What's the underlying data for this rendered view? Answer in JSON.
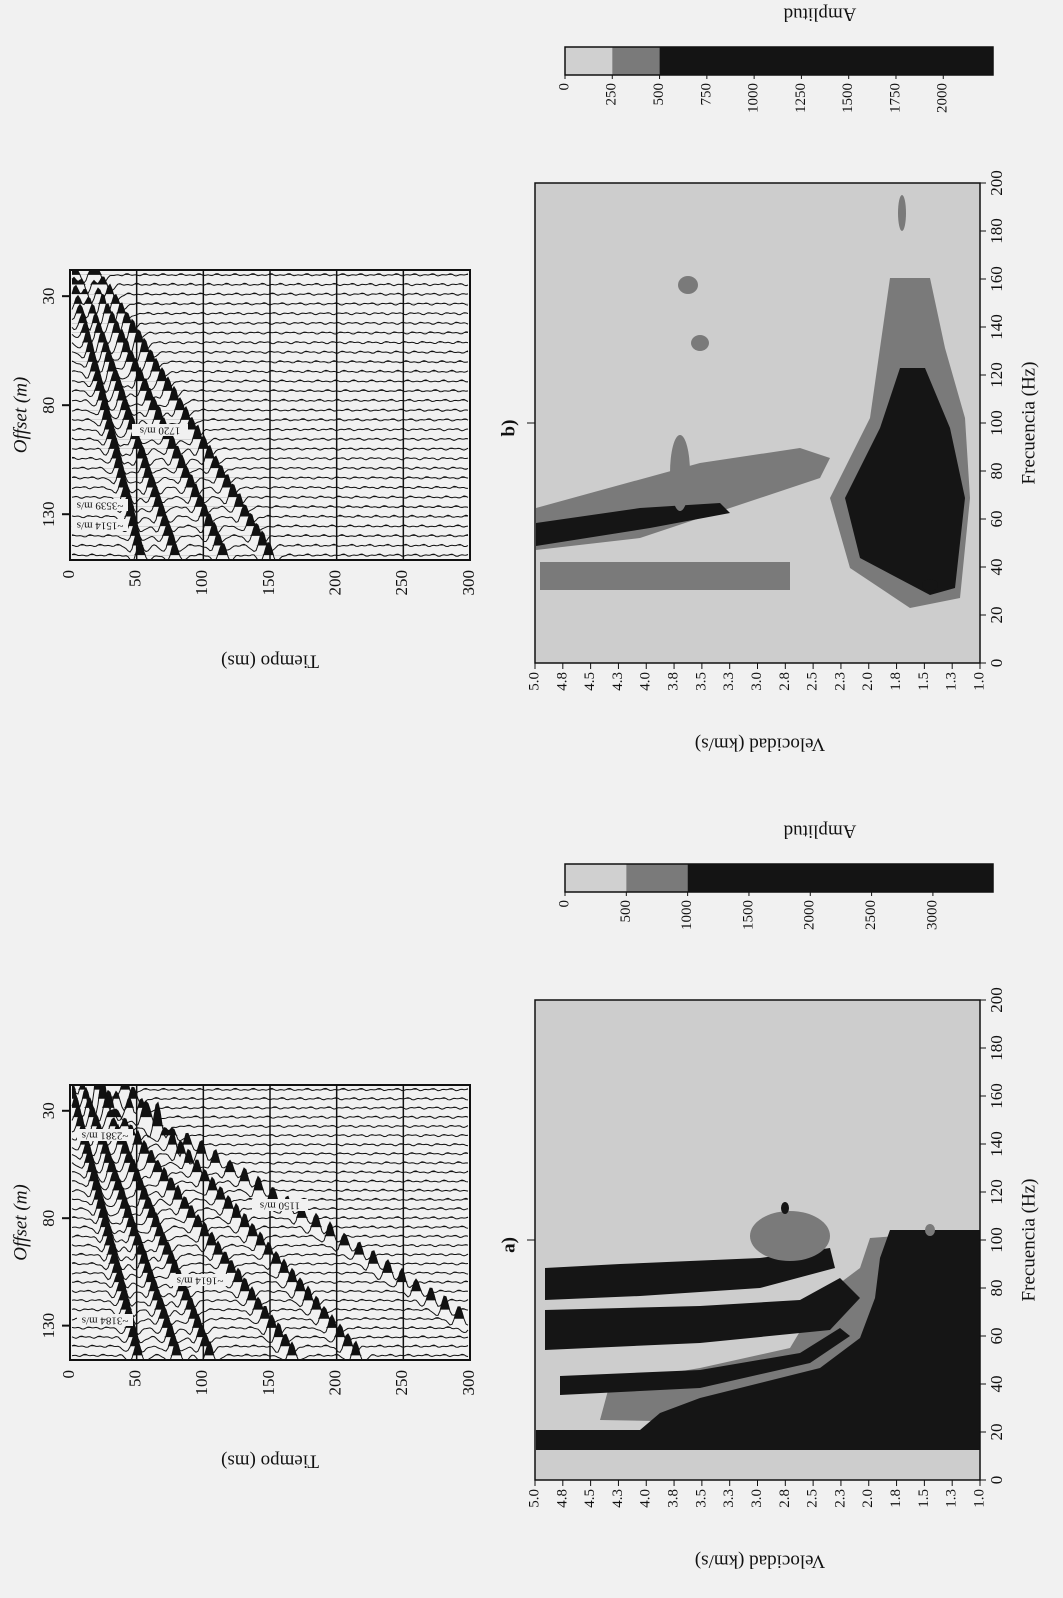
{
  "chart_data": [
    {
      "type": "seismic-panel",
      "label": "a)",
      "seismogram": {
        "xlabel": "Offset (m)",
        "ylabel": "Tiempo (ms)",
        "xlim": [
          146,
          18
        ],
        "xticks": [
          130,
          80,
          30
        ],
        "ylim": [
          0,
          300
        ],
        "yticks": [
          0,
          50,
          100,
          150,
          200,
          250,
          300
        ],
        "grid": true,
        "annotations": [
          "~2381 m/s",
          "~3184 m/s",
          "~1614 m/s",
          "1150 m/s"
        ]
      },
      "dispersion": {
        "xlabel": "Frecuencia (Hz)",
        "ylabel": "Velocidad (km/s)",
        "xlim": [
          0,
          200
        ],
        "xticks": [
          0,
          20,
          40,
          60,
          80,
          100,
          120,
          140,
          160,
          180,
          200
        ],
        "ylim": [
          1,
          5
        ],
        "yticks": [
          {
            "value": 5,
            "label": "5.0"
          },
          {
            "value": 4.75,
            "label": "4.8"
          },
          4.5,
          {
            "value": 4.25,
            "label": "4.3"
          },
          {
            "value": 4,
            "label": "4.0"
          },
          {
            "value": 3.75,
            "label": "3.8"
          },
          3.5,
          {
            "value": 3.25,
            "label": "3.3"
          },
          {
            "value": 3,
            "label": "3.0"
          },
          {
            "value": 2.75,
            "label": "2.8"
          },
          2.5,
          {
            "value": 2.25,
            "label": "2.3"
          },
          {
            "value": 2,
            "label": "2.0"
          },
          {
            "value": 1.75,
            "label": "1.8"
          },
          1.5,
          {
            "value": 1.25,
            "label": "1.3"
          },
          {
            "value": 1,
            "label": "1.0"
          }
        ]
      },
      "colorbar": {
        "label": "Amplitud",
        "lim": [
          0,
          3490
        ],
        "ticks": [
          0,
          500,
          1000,
          1500,
          2000,
          2500,
          3000
        ],
        "levels": [
          0,
          500,
          1000
        ],
        "colors": [
          "#d0d0d0",
          "#7a7a7a",
          "#141414"
        ]
      }
    },
    {
      "type": "seismic-panel",
      "label": "b)",
      "seismogram": {
        "xlabel": "Offset (m)",
        "ylabel": "Tiempo (ms)",
        "xlim": [
          151,
          18
        ],
        "xticks": [
          130,
          80,
          30
        ],
        "ylim": [
          0,
          300
        ],
        "yticks": [
          0,
          50,
          100,
          150,
          200,
          250,
          300
        ],
        "grid": true,
        "annotations": [
          "~3539 m/s",
          "~1514 m/s",
          "1720 m/s"
        ]
      },
      "dispersion": {
        "xlabel": "Frecuencia (Hz)",
        "ylabel": "Velocidad (km/s)",
        "xlim": [
          0,
          200
        ],
        "xticks": [
          0,
          20,
          40,
          60,
          80,
          100,
          120,
          140,
          160,
          180,
          200
        ],
        "ylim": [
          1,
          5
        ],
        "yticks": [
          {
            "value": 5,
            "label": "5.0"
          },
          {
            "value": 4.75,
            "label": "4.8"
          },
          4.5,
          {
            "value": 4.25,
            "label": "4.3"
          },
          {
            "value": 4,
            "label": "4.0"
          },
          {
            "value": 3.75,
            "label": "3.8"
          },
          3.5,
          {
            "value": 3.25,
            "label": "3.3"
          },
          {
            "value": 3,
            "label": "3.0"
          },
          {
            "value": 2.75,
            "label": "2.8"
          },
          2.5,
          {
            "value": 2.25,
            "label": "2.3"
          },
          {
            "value": 2,
            "label": "2.0"
          },
          {
            "value": 1.75,
            "label": "1.8"
          },
          1.5,
          {
            "value": 1.25,
            "label": "1.3"
          },
          {
            "value": 1,
            "label": "1.0"
          }
        ]
      },
      "colorbar": {
        "label": "Amplitud",
        "lim": [
          0,
          2263
        ],
        "ticks": [
          0,
          250,
          500,
          750,
          1000,
          1250,
          1500,
          1750,
          2000
        ],
        "levels": [
          0,
          250,
          500
        ],
        "colors": [
          "#d0d0d0",
          "#7a7a7a",
          "#141414"
        ]
      }
    }
  ]
}
